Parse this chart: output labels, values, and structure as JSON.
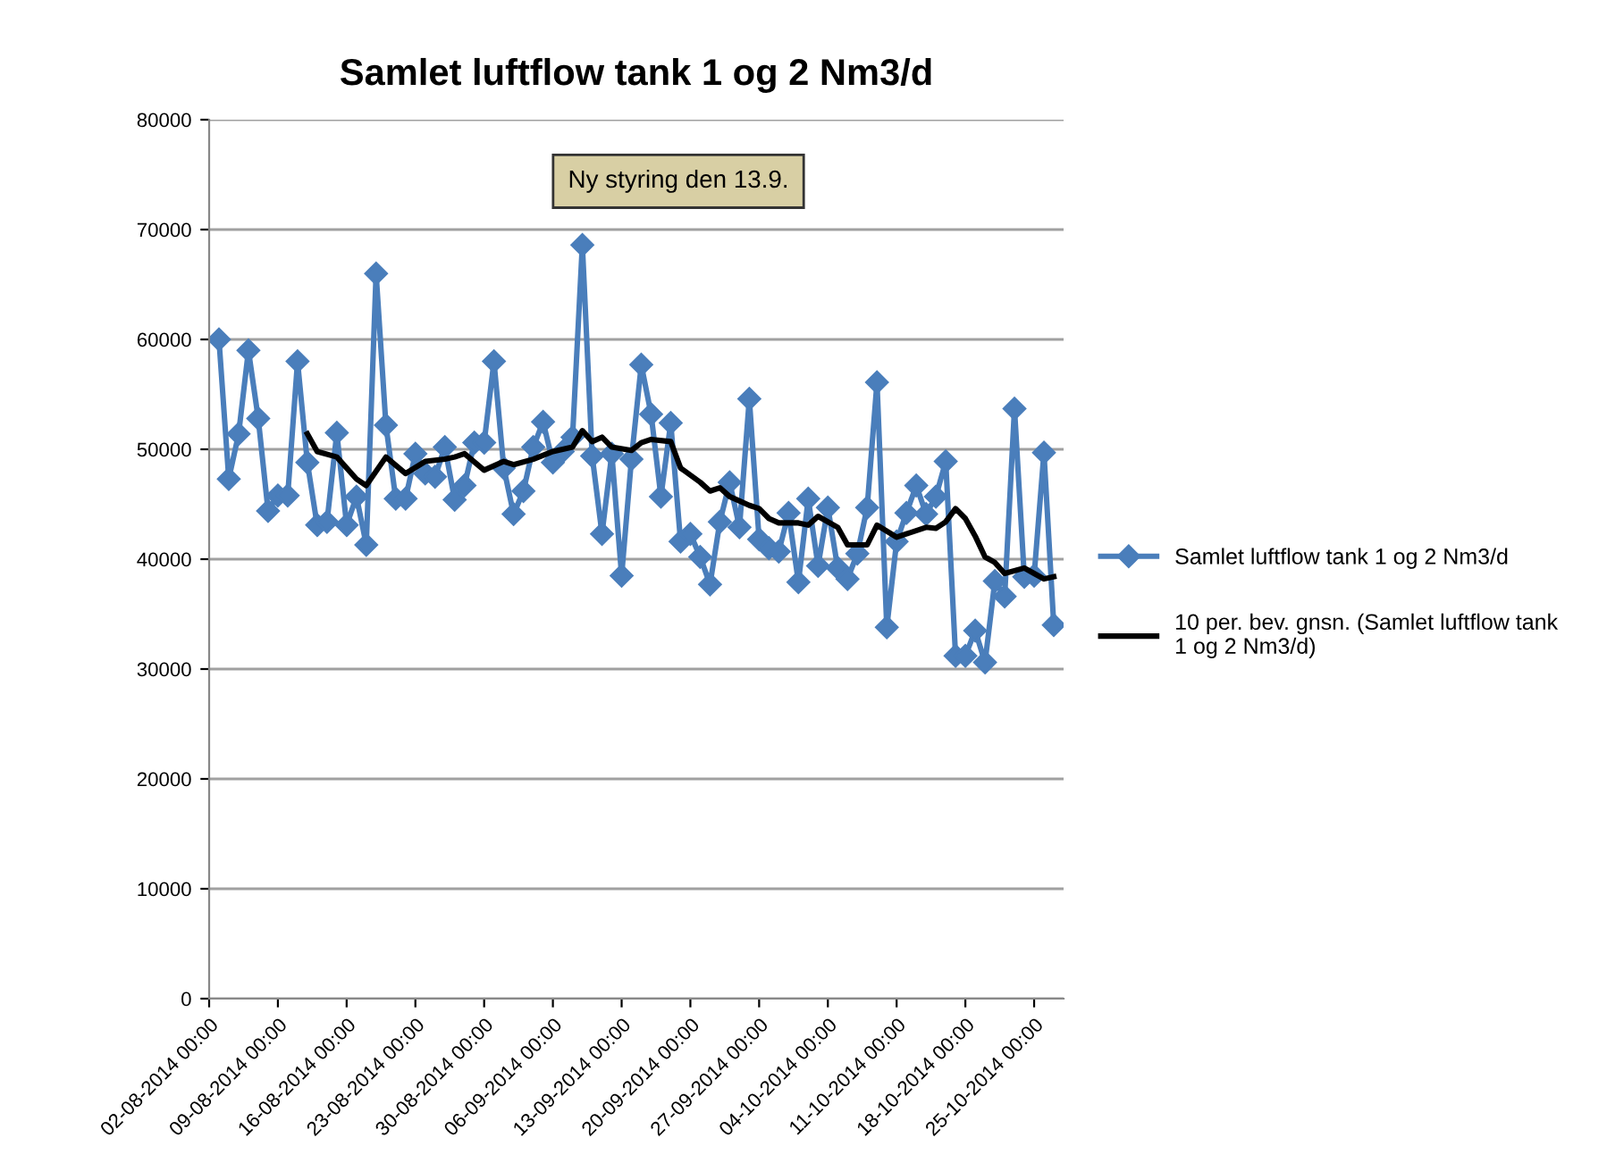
{
  "chart_data": {
    "type": "line",
    "title": "Samlet luftflow tank 1 og 2 Nm3/d",
    "annotations": [
      "Ny styring den 13.9."
    ],
    "xlim": [
      "2014-08-02",
      "2014-10-28"
    ],
    "xticks": [
      {
        "value": "2014-08-02",
        "label": "02-08-2014 00:00"
      },
      {
        "value": "2014-08-09",
        "label": "09-08-2014 00:00"
      },
      {
        "value": "2014-08-16",
        "label": "16-08-2014 00:00"
      },
      {
        "value": "2014-08-23",
        "label": "23-08-2014 00:00"
      },
      {
        "value": "2014-08-30",
        "label": "30-08-2014 00:00"
      },
      {
        "value": "2014-09-06",
        "label": "06-09-2014 00:00"
      },
      {
        "value": "2014-09-13",
        "label": "13-09-2014 00:00"
      },
      {
        "value": "2014-09-20",
        "label": "20-09-2014 00:00"
      },
      {
        "value": "2014-09-27",
        "label": "27-09-2014 00:00"
      },
      {
        "value": "2014-10-04",
        "label": "04-10-2014 00:00"
      },
      {
        "value": "2014-10-11",
        "label": "11-10-2014 00:00"
      },
      {
        "value": "2014-10-18",
        "label": "18-10-2014 00:00"
      },
      {
        "value": "2014-10-25",
        "label": "25-10-2014 00:00"
      }
    ],
    "ylim": [
      0,
      80000
    ],
    "yticks": [
      0,
      10000,
      20000,
      30000,
      40000,
      50000,
      60000,
      70000,
      80000
    ],
    "grid": "y",
    "legend": "right",
    "series": [
      {
        "name": "Samlet luftflow tank 1 og 2 Nm3/d",
        "color": "#4a7ebb",
        "marker": "diamond",
        "line_style": "solid",
        "x": [
          "2014-08-03",
          "2014-08-04",
          "2014-08-05",
          "2014-08-06",
          "2014-08-07",
          "2014-08-08",
          "2014-08-09",
          "2014-08-10",
          "2014-08-11",
          "2014-08-12",
          "2014-08-13",
          "2014-08-14",
          "2014-08-15",
          "2014-08-16",
          "2014-08-17",
          "2014-08-18",
          "2014-08-19",
          "2014-08-20",
          "2014-08-21",
          "2014-08-22",
          "2014-08-23",
          "2014-08-24",
          "2014-08-25",
          "2014-08-26",
          "2014-08-27",
          "2014-08-28",
          "2014-08-29",
          "2014-08-30",
          "2014-08-31",
          "2014-09-01",
          "2014-09-02",
          "2014-09-03",
          "2014-09-04",
          "2014-09-05",
          "2014-09-06",
          "2014-09-07",
          "2014-09-08",
          "2014-09-09",
          "2014-09-10",
          "2014-09-11",
          "2014-09-12",
          "2014-09-13",
          "2014-09-14",
          "2014-09-15",
          "2014-09-16",
          "2014-09-17",
          "2014-09-18",
          "2014-09-19",
          "2014-09-20",
          "2014-09-21",
          "2014-09-22",
          "2014-09-23",
          "2014-09-24",
          "2014-09-25",
          "2014-09-26",
          "2014-09-27",
          "2014-09-28",
          "2014-09-29",
          "2014-09-30",
          "2014-10-01",
          "2014-10-02",
          "2014-10-03",
          "2014-10-04",
          "2014-10-05",
          "2014-10-06",
          "2014-10-07",
          "2014-10-08",
          "2014-10-09",
          "2014-10-10",
          "2014-10-11",
          "2014-10-12",
          "2014-10-13",
          "2014-10-14",
          "2014-10-15",
          "2014-10-16",
          "2014-10-17",
          "2014-10-18",
          "2014-10-19",
          "2014-10-20",
          "2014-10-21",
          "2014-10-22",
          "2014-10-23",
          "2014-10-24",
          "2014-10-25",
          "2014-10-26",
          "2014-10-27"
        ],
        "values": [
          60000,
          47300,
          51400,
          59000,
          52800,
          44400,
          45800,
          45800,
          58000,
          48800,
          43100,
          43400,
          51500,
          43100,
          45700,
          41300,
          66000,
          52200,
          45500,
          45500,
          49600,
          47800,
          47500,
          50200,
          45400,
          46700,
          50600,
          50600,
          58000,
          48300,
          44100,
          46200,
          50200,
          52500,
          48800,
          49800,
          51100,
          68600,
          49400,
          42300,
          49600,
          38500,
          49100,
          57700,
          53200,
          45700,
          52400,
          41600,
          42300,
          40200,
          37700,
          43400,
          47000,
          42900,
          54600,
          41800,
          41000,
          40700,
          44200,
          37900,
          45500,
          39400,
          44700,
          39200,
          38200,
          40500,
          44700,
          56100,
          33800,
          41600,
          44200,
          46700,
          44100,
          45700,
          48900,
          31200,
          31200,
          33500,
          30600,
          38000,
          36600,
          53700,
          38400,
          38500,
          49700,
          34000
        ]
      },
      {
        "name": "10 per. bev. gnsn. (Samlet luftflow tank 1 og 2 Nm3/d)",
        "color": "#000000",
        "marker": "none",
        "line_style": "solid",
        "x": [
          "2014-08-12",
          "2014-08-13",
          "2014-08-15",
          "2014-08-17",
          "2014-08-18",
          "2014-08-20",
          "2014-08-22",
          "2014-08-24",
          "2014-08-26",
          "2014-08-27",
          "2014-08-28",
          "2014-08-30",
          "2014-09-01",
          "2014-09-02",
          "2014-09-04",
          "2014-09-06",
          "2014-09-08",
          "2014-09-09",
          "2014-09-10",
          "2014-09-11",
          "2014-09-12",
          "2014-09-14",
          "2014-09-15",
          "2014-09-16",
          "2014-09-18",
          "2014-09-19",
          "2014-09-21",
          "2014-09-22",
          "2014-09-23",
          "2014-09-24",
          "2014-09-26",
          "2014-09-27",
          "2014-09-28",
          "2014-09-29",
          "2014-10-01",
          "2014-10-02",
          "2014-10-03",
          "2014-10-05",
          "2014-10-06",
          "2014-10-08",
          "2014-10-09",
          "2014-10-11",
          "2014-10-12",
          "2014-10-14",
          "2014-10-15",
          "2014-10-16",
          "2014-10-17",
          "2014-10-18",
          "2014-10-19",
          "2014-10-20",
          "2014-10-21",
          "2014-10-22",
          "2014-10-24",
          "2014-10-25",
          "2014-10-26",
          "2014-10-27"
        ],
        "values": [
          51400,
          49800,
          49300,
          47300,
          46700,
          49300,
          47800,
          48900,
          49100,
          49300,
          49600,
          48100,
          48900,
          48600,
          49100,
          49800,
          50200,
          51700,
          50700,
          51100,
          50200,
          49900,
          50600,
          50900,
          50700,
          48300,
          47000,
          46200,
          46500,
          45700,
          44900,
          44600,
          43700,
          43300,
          43300,
          43100,
          43900,
          42900,
          41300,
          41300,
          43100,
          42000,
          42300,
          42900,
          42800,
          43400,
          44600,
          43700,
          42100,
          40200,
          39700,
          38700,
          39200,
          38700,
          38200,
          38400
        ]
      }
    ]
  }
}
